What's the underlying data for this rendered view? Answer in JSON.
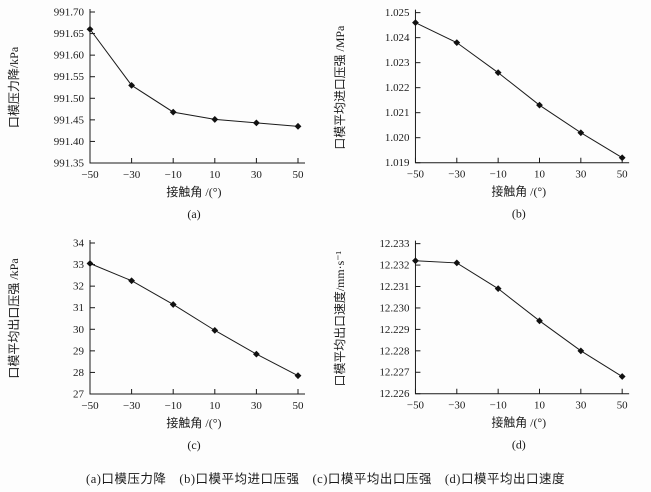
{
  "figure": {
    "caption": "(a)口模压力降　(b)口模平均进口压强　(c)口模平均出口压强　(d)口模平均出口速度",
    "line_color": "#1a1a1a",
    "marker": "filled-diamond"
  },
  "chart_data": [
    {
      "type": "line",
      "panel": "(a)",
      "xlabel": "接触角 /(°)",
      "ylabel": "口模压力降/kPa",
      "x": [
        -50,
        -30,
        -10,
        10,
        30,
        50
      ],
      "values": [
        991.66,
        991.53,
        991.468,
        991.451,
        991.443,
        991.435
      ],
      "xlim": [
        -50,
        50
      ],
      "ylim": [
        991.35,
        991.7
      ],
      "xtick_values": [
        -50,
        -30,
        -10,
        10,
        30,
        50
      ],
      "xtick_labels": [
        "−50",
        "−30",
        "−10",
        "10",
        "30",
        "50"
      ],
      "ytick_values": [
        991.35,
        991.4,
        991.45,
        991.5,
        991.55,
        991.6,
        991.65,
        991.7
      ],
      "ytick_labels": [
        "991.35",
        "991.40",
        "991.45",
        "991.50",
        "991.55",
        "991.60",
        "991.65",
        "991.70"
      ],
      "legend": null,
      "grid": false
    },
    {
      "type": "line",
      "panel": "(b)",
      "xlabel": "接触角 /(°)",
      "ylabel": "口模平均进口压强 /MPa",
      "x": [
        -50,
        -30,
        -10,
        10,
        30,
        50
      ],
      "values": [
        1.0246,
        1.0238,
        1.0226,
        1.0213,
        1.0202,
        1.0192
      ],
      "xlim": [
        -50,
        50
      ],
      "ylim": [
        1.019,
        1.025
      ],
      "xtick_values": [
        -50,
        -30,
        -10,
        10,
        30,
        50
      ],
      "xtick_labels": [
        "−50",
        "−30",
        "−10",
        "10",
        "30",
        "50"
      ],
      "ytick_values": [
        1.019,
        1.02,
        1.021,
        1.022,
        1.023,
        1.024,
        1.025
      ],
      "ytick_labels": [
        "1.019",
        "1.020",
        "1.021",
        "1.022",
        "1.023",
        "1.024",
        "1.025"
      ],
      "legend": null,
      "grid": false
    },
    {
      "type": "line",
      "panel": "(c)",
      "xlabel": "接触角 /(°)",
      "ylabel": "口模平均出口压强 /kPa",
      "x": [
        -50,
        -30,
        -10,
        10,
        30,
        50
      ],
      "values": [
        33.05,
        32.25,
        31.15,
        29.95,
        28.85,
        27.85
      ],
      "xlim": [
        -50,
        50
      ],
      "ylim": [
        27,
        34
      ],
      "xtick_values": [
        -50,
        -30,
        -10,
        10,
        30,
        50
      ],
      "xtick_labels": [
        "−50",
        "−30",
        "−10",
        "10",
        "30",
        "50"
      ],
      "ytick_values": [
        27,
        28,
        29,
        30,
        31,
        32,
        33,
        34
      ],
      "ytick_labels": [
        "27",
        "28",
        "29",
        "30",
        "31",
        "32",
        "33",
        "34"
      ],
      "legend": null,
      "grid": false
    },
    {
      "type": "line",
      "panel": "(d)",
      "xlabel": "接触角 /(°)",
      "ylabel": "口模平均出口速度/mm·s⁻¹",
      "x": [
        -50,
        -30,
        -10,
        10,
        30,
        50
      ],
      "values": [
        12.2322,
        12.2321,
        12.2309,
        12.2294,
        12.228,
        12.2268
      ],
      "xlim": [
        -50,
        50
      ],
      "ylim": [
        12.226,
        12.233
      ],
      "xtick_values": [
        -50,
        -30,
        -10,
        10,
        30,
        50
      ],
      "xtick_labels": [
        "−50",
        "−30",
        "−10",
        "10",
        "30",
        "50"
      ],
      "ytick_values": [
        12.226,
        12.227,
        12.228,
        12.229,
        12.23,
        12.231,
        12.232,
        12.233
      ],
      "ytick_labels": [
        "12.226",
        "12.227",
        "12.228",
        "12.229",
        "12.230",
        "12.231",
        "12.232",
        "12.233"
      ],
      "legend": null,
      "grid": false
    }
  ]
}
